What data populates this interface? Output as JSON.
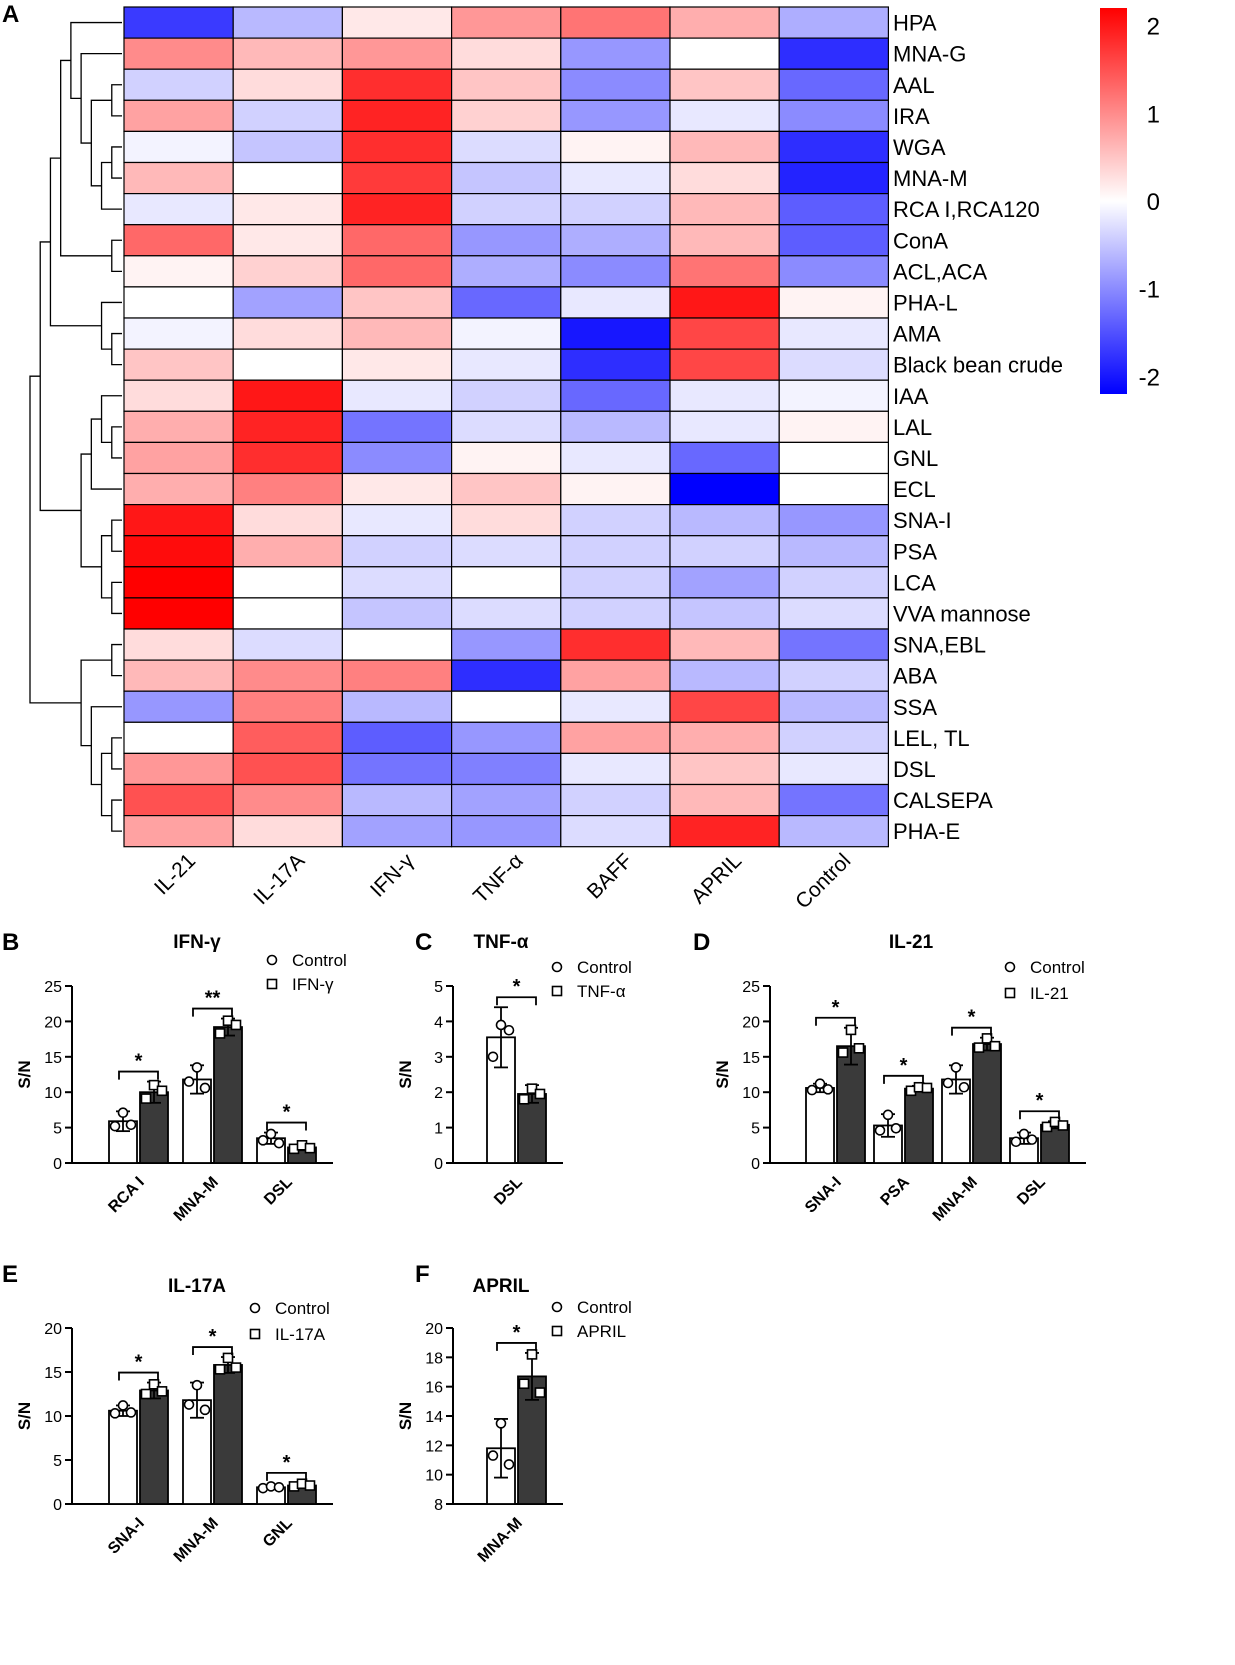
{
  "chart_data": [
    {
      "type": "heatmap",
      "panel": "A",
      "columns": [
        "IL-21",
        "IL-17A",
        "IFN-γ",
        "TNF-α",
        "BAFF",
        "APRIL",
        "Control"
      ],
      "rows": [
        "HPA",
        "MNA-G",
        "AAL",
        "IRA",
        "WGA",
        "MNA-M",
        "RCA I,RCA120",
        "ConA",
        "ACL,ACA",
        "PHA-L",
        "AMA",
        "Black bean crude",
        "IAA",
        "LAL",
        "GNL",
        "ECL",
        "SNA-I",
        "PSA",
        "LCA",
        "VVA mannose",
        "SNA,EBL",
        "ABA",
        "SSA",
        "LEL, TL",
        "DSL",
        "CALSEPA",
        "PHA-E"
      ],
      "values": [
        [
          -1.7,
          -0.6,
          0.2,
          0.9,
          1.2,
          0.7,
          -0.7
        ],
        [
          1.0,
          0.6,
          0.9,
          0.3,
          -0.9,
          0.0,
          -1.8
        ],
        [
          -0.4,
          0.3,
          1.8,
          0.5,
          -1.0,
          0.5,
          -1.3
        ],
        [
          0.8,
          -0.4,
          1.9,
          0.4,
          -0.9,
          -0.2,
          -1.0
        ],
        [
          -0.1,
          -0.5,
          1.8,
          -0.3,
          0.1,
          0.6,
          -1.8
        ],
        [
          0.6,
          0.0,
          1.7,
          -0.5,
          -0.2,
          0.3,
          -1.9
        ],
        [
          -0.2,
          0.2,
          1.9,
          -0.4,
          -0.4,
          0.6,
          -1.4
        ],
        [
          1.3,
          0.2,
          1.3,
          -0.9,
          -0.7,
          0.6,
          -1.4
        ],
        [
          0.1,
          0.4,
          1.3,
          -0.7,
          -1.0,
          1.2,
          -1.0
        ],
        [
          0.0,
          -0.8,
          0.5,
          -1.3,
          -0.2,
          2.0,
          0.1
        ],
        [
          -0.1,
          0.3,
          0.6,
          -0.1,
          -2.0,
          1.6,
          -0.2
        ],
        [
          0.5,
          0.0,
          0.2,
          -0.2,
          -1.8,
          1.6,
          -0.3
        ],
        [
          0.3,
          2.0,
          -0.2,
          -0.4,
          -1.3,
          -0.2,
          -0.1
        ],
        [
          0.7,
          1.9,
          -1.2,
          -0.3,
          -0.6,
          -0.2,
          0.1
        ],
        [
          0.8,
          1.8,
          -1.0,
          0.1,
          -0.2,
          -1.3,
          0.0
        ],
        [
          0.7,
          1.1,
          0.2,
          0.5,
          0.1,
          -2.2,
          0.0
        ],
        [
          2.0,
          0.3,
          -0.2,
          0.3,
          -0.4,
          -0.6,
          -0.9
        ],
        [
          2.1,
          0.7,
          -0.4,
          -0.3,
          -0.4,
          -0.4,
          -0.6
        ],
        [
          2.2,
          0.0,
          -0.3,
          0.0,
          -0.4,
          -0.8,
          -0.4
        ],
        [
          2.2,
          0.0,
          -0.5,
          -0.3,
          -0.4,
          -0.5,
          -0.3
        ],
        [
          0.3,
          -0.3,
          0.0,
          -0.9,
          1.8,
          0.6,
          -1.2
        ],
        [
          0.6,
          1.0,
          1.1,
          -1.8,
          0.8,
          -0.6,
          -0.4
        ],
        [
          -0.9,
          1.1,
          -0.6,
          0.0,
          -0.2,
          1.6,
          -0.6
        ],
        [
          0.0,
          1.4,
          -1.4,
          -0.9,
          0.8,
          0.7,
          -0.4
        ],
        [
          0.9,
          1.5,
          -1.2,
          -1.1,
          -0.2,
          0.5,
          -0.2
        ],
        [
          1.5,
          1.0,
          -0.6,
          -0.8,
          -0.4,
          0.6,
          -1.2
        ],
        [
          0.8,
          0.3,
          -0.8,
          -0.9,
          -0.3,
          1.9,
          -0.6
        ]
      ],
      "colorbar": {
        "ticks": [
          "2",
          "1",
          "0",
          "-1",
          "-2"
        ],
        "min": -2.2,
        "max": 2.2,
        "low_color": "#0000ff",
        "mid_color": "#ffffff",
        "high_color": "#ff0000"
      }
    },
    {
      "type": "bar",
      "panel": "B",
      "title": "IFN-γ",
      "ylabel": "S/N",
      "ylim": [
        0,
        25
      ],
      "yticks": [
        "0",
        "5",
        "10",
        "15",
        "20",
        "25"
      ],
      "categories": [
        "RCA I",
        "MNA-M",
        "DSL"
      ],
      "legend": [
        "Control",
        "IFN-γ"
      ],
      "series": [
        {
          "name": "Control",
          "values": [
            5.9,
            11.8,
            3.5
          ],
          "errors": [
            1.4,
            2.0,
            0.8
          ],
          "points": [
            [
              5.2,
              7.1,
              5.4
            ],
            [
              11.5,
              13.5,
              10.6
            ],
            [
              3.2,
              4.1,
              2.8
            ]
          ]
        },
        {
          "name": "IFN-γ",
          "values": [
            10.0,
            19.2,
            2.2
          ],
          "errors": [
            1.5,
            1.2,
            0.4
          ],
          "points": [
            [
              9.1,
              11.0,
              10.2
            ],
            [
              18.3,
              20.1,
              19.5
            ],
            [
              2.0,
              2.5,
              2.1
            ]
          ]
        }
      ],
      "significance": [
        "*",
        "**",
        "*"
      ]
    },
    {
      "type": "bar",
      "panel": "C",
      "title": "TNF-α",
      "ylabel": "S/N",
      "ylim": [
        0,
        5
      ],
      "yticks": [
        "0",
        "1",
        "2",
        "3",
        "4",
        "5"
      ],
      "categories": [
        "DSL"
      ],
      "legend": [
        "Control",
        "TNF-α"
      ],
      "series": [
        {
          "name": "Control",
          "values": [
            3.55
          ],
          "errors": [
            0.85
          ],
          "points": [
            [
              3.0,
              3.9,
              3.75
            ]
          ]
        },
        {
          "name": "TNF-α",
          "values": [
            1.95
          ],
          "errors": [
            0.25
          ],
          "points": [
            [
              1.8,
              2.1,
              1.95
            ]
          ]
        }
      ],
      "significance": [
        "*"
      ]
    },
    {
      "type": "bar",
      "panel": "D",
      "title": "IL-21",
      "ylabel": "S/N",
      "ylim": [
        0,
        25
      ],
      "yticks": [
        "0",
        "5",
        "10",
        "15",
        "20",
        "25"
      ],
      "categories": [
        "SNA-I",
        "PSA",
        "MNA-M",
        "DSL"
      ],
      "legend": [
        "Control",
        "IL-21"
      ],
      "series": [
        {
          "name": "Control",
          "values": [
            10.6,
            5.3,
            11.8,
            3.5
          ],
          "errors": [
            0.6,
            1.6,
            2.0,
            0.8
          ],
          "points": [
            [
              10.3,
              11.2,
              10.4
            ],
            [
              4.6,
              6.8,
              4.9
            ],
            [
              11.3,
              13.5,
              10.7
            ],
            [
              3.0,
              4.1,
              3.3
            ]
          ]
        },
        {
          "name": "IL-21",
          "values": [
            16.5,
            10.5,
            16.8,
            5.4
          ],
          "errors": [
            2.6,
            0.4,
            0.9,
            0.5
          ],
          "points": [
            [
              15.6,
              18.8,
              16.2
            ],
            [
              10.2,
              10.7,
              10.6
            ],
            [
              16.3,
              17.6,
              16.5
            ],
            [
              5.1,
              5.8,
              5.3
            ]
          ]
        }
      ],
      "significance": [
        "*",
        "*",
        "*",
        "*"
      ]
    },
    {
      "type": "bar",
      "panel": "E",
      "title": "IL-17A",
      "ylabel": "S/N",
      "ylim": [
        0,
        20
      ],
      "yticks": [
        "0",
        "5",
        "10",
        "15",
        "20"
      ],
      "categories": [
        "SNA-I",
        "MNA-M",
        "GNL"
      ],
      "legend": [
        "Control",
        "IL-17A"
      ],
      "series": [
        {
          "name": "Control",
          "values": [
            10.6,
            11.8,
            1.9
          ],
          "errors": [
            0.6,
            2.0,
            0.2
          ],
          "points": [
            [
              10.3,
              11.2,
              10.4
            ],
            [
              11.3,
              13.5,
              10.7
            ],
            [
              1.8,
              2.0,
              1.9
            ]
          ]
        },
        {
          "name": "IL-17A",
          "values": [
            12.9,
            15.8,
            2.1
          ],
          "errors": [
            0.9,
            0.9,
            0.3
          ],
          "points": [
            [
              12.5,
              13.6,
              12.8
            ],
            [
              15.3,
              16.6,
              15.5
            ],
            [
              2.0,
              2.3,
              2.1
            ]
          ]
        }
      ],
      "significance": [
        "*",
        "*",
        "*"
      ]
    },
    {
      "type": "bar",
      "panel": "F",
      "title": "APRIL",
      "ylabel": "S/N",
      "ylim": [
        8,
        20
      ],
      "yticks": [
        "8",
        "10",
        "12",
        "14",
        "16",
        "18",
        "20"
      ],
      "categories": [
        "MNA-M"
      ],
      "legend": [
        "Control",
        "APRIL"
      ],
      "series": [
        {
          "name": "Control",
          "values": [
            11.8
          ],
          "errors": [
            2.0
          ],
          "points": [
            [
              11.3,
              13.5,
              10.7
            ]
          ]
        },
        {
          "name": "APRIL",
          "values": [
            16.7
          ],
          "errors": [
            1.6
          ],
          "points": [
            [
              16.2,
              18.2,
              15.6
            ]
          ]
        }
      ],
      "significance": [
        "*"
      ]
    }
  ]
}
